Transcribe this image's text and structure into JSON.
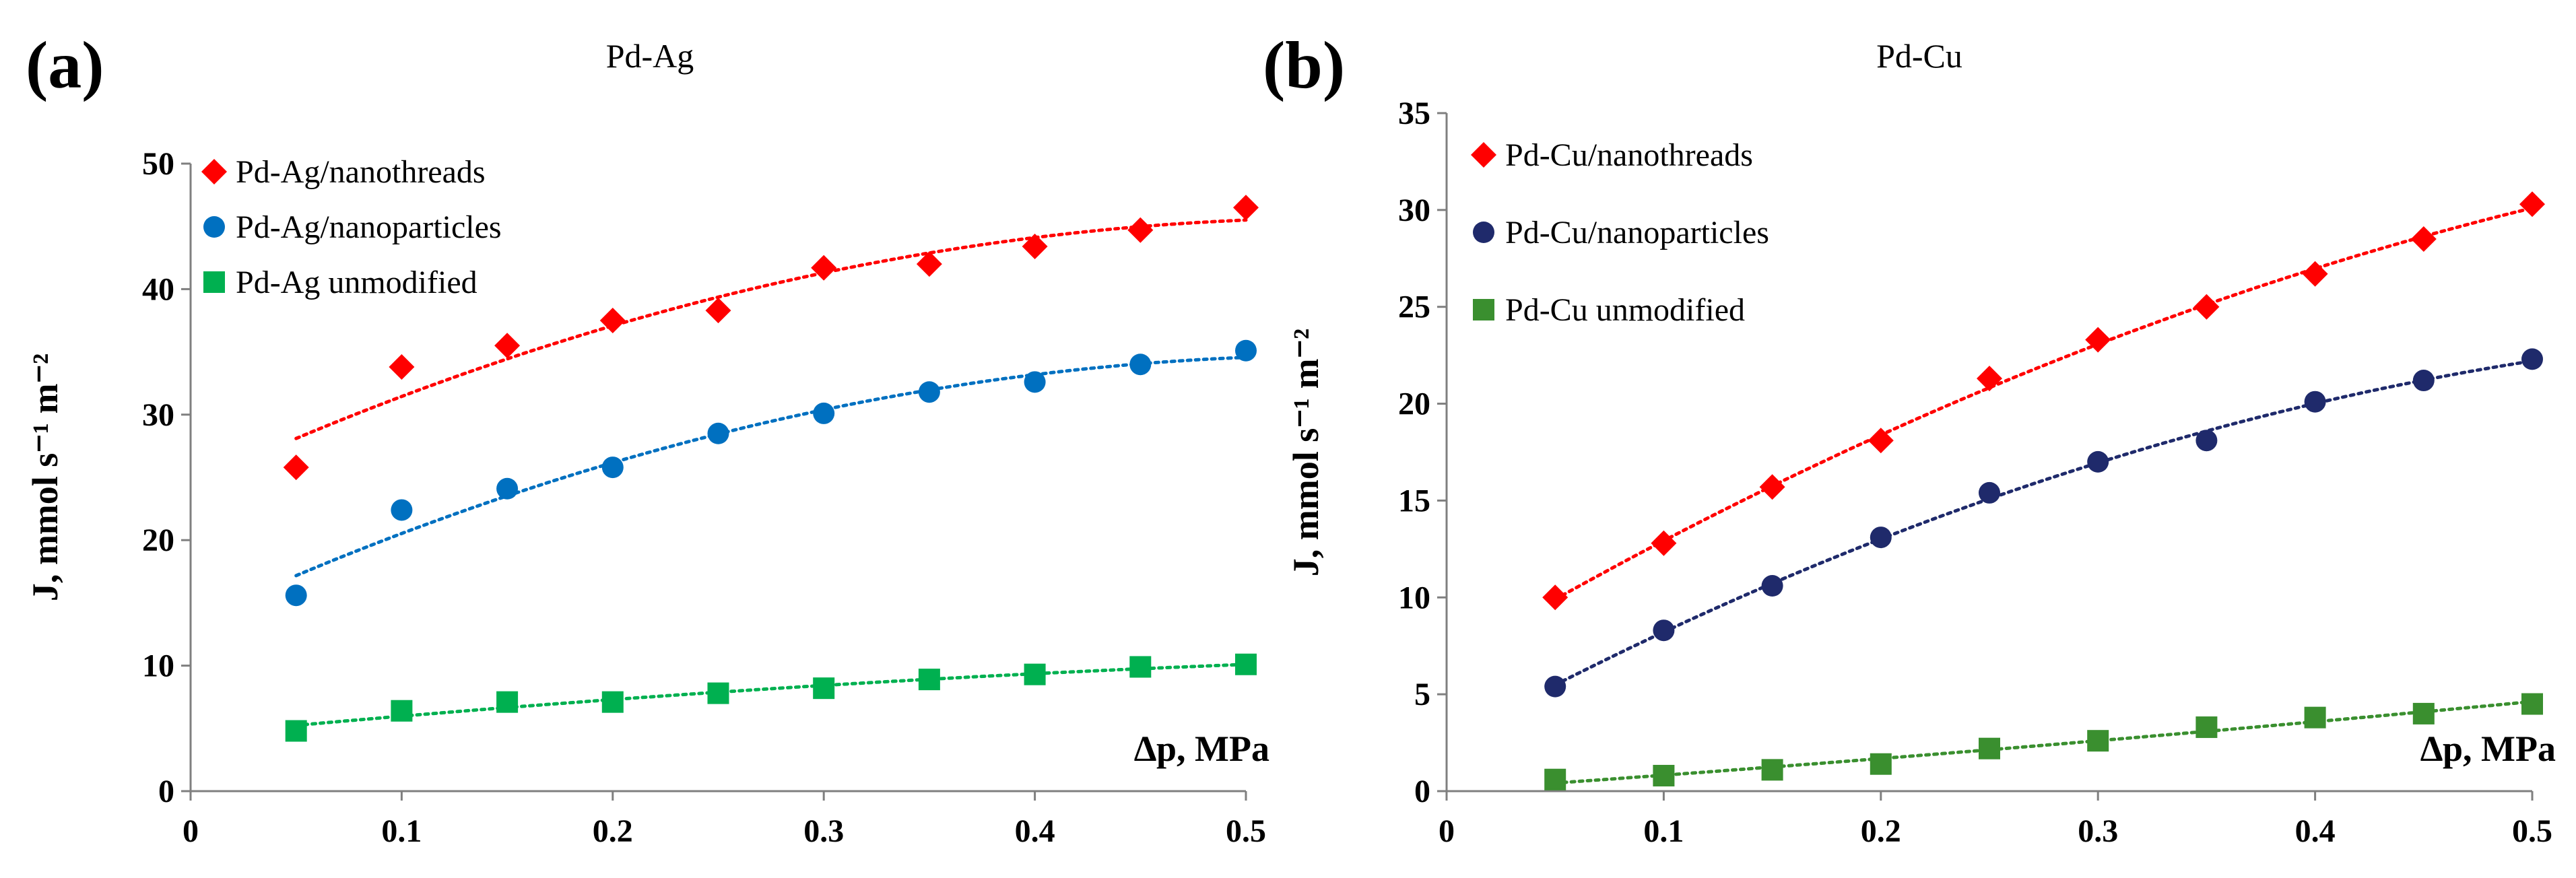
{
  "chart_data": [
    {
      "type": "scatter",
      "panel_label": "(a)",
      "title": "Pd-Ag",
      "xlabel": "∆p, MPa",
      "ylabel": "J, mmol s⁻¹ m⁻²",
      "xlim": [
        0,
        0.5
      ],
      "ylim": [
        0,
        50
      ],
      "xticks": [
        "0",
        "0.1",
        "0.2",
        "0.3",
        "0.4",
        "0.5"
      ],
      "yticks": [
        "0",
        "10",
        "20",
        "30",
        "40",
        "50"
      ],
      "grid": false,
      "legend_position": "top-left",
      "x": [
        0.05,
        0.1,
        0.15,
        0.2,
        0.25,
        0.3,
        0.35,
        0.4,
        0.45,
        0.5
      ],
      "series": [
        {
          "name": "Pd-Ag/nanothreads",
          "marker": "diamond",
          "color": "#ff0000",
          "values": [
            25.8,
            33.8,
            35.5,
            37.5,
            38.3,
            41.7,
            42.0,
            43.4,
            44.7,
            46.5
          ]
        },
        {
          "name": "Pd-Ag/nanoparticles",
          "marker": "circle",
          "color": "#0070c0",
          "values": [
            15.6,
            22.4,
            24.1,
            25.8,
            28.5,
            30.1,
            31.8,
            32.6,
            34.0,
            35.1
          ]
        },
        {
          "name": "Pd-Ag unmodified",
          "marker": "square",
          "color": "#00b050",
          "values": [
            4.8,
            6.4,
            7.1,
            7.1,
            7.8,
            8.2,
            8.9,
            9.3,
            9.9,
            10.1
          ]
        }
      ]
    },
    {
      "type": "scatter",
      "panel_label": "(b)",
      "title": "Pd-Cu",
      "xlabel": "∆p, MPa",
      "ylabel": "J, mmol s⁻¹ m⁻²",
      "xlim": [
        0,
        0.5
      ],
      "ylim": [
        0,
        35
      ],
      "xticks": [
        "0",
        "0.1",
        "0.2",
        "0.3",
        "0.4",
        "0.5"
      ],
      "yticks": [
        "0",
        "5",
        "10",
        "15",
        "20",
        "25",
        "30",
        "35"
      ],
      "grid": false,
      "legend_position": "top-left",
      "x": [
        0.05,
        0.1,
        0.15,
        0.2,
        0.25,
        0.3,
        0.35,
        0.4,
        0.45,
        0.5
      ],
      "series": [
        {
          "name": "Pd-Cu/nanothreads",
          "marker": "diamond",
          "color": "#ff0000",
          "values": [
            10.0,
            12.8,
            15.7,
            18.1,
            21.3,
            23.3,
            25.0,
            26.7,
            28.5,
            30.3
          ]
        },
        {
          "name": "Pd-Cu/nanoparticles",
          "marker": "circle",
          "color": "#1f2a6b",
          "values": [
            5.4,
            8.3,
            10.6,
            13.1,
            15.4,
            17.0,
            18.1,
            20.1,
            21.2,
            22.3
          ]
        },
        {
          "name": "Pd-Cu unmodified",
          "marker": "square",
          "color": "#3a8f2f",
          "values": [
            0.6,
            0.8,
            1.1,
            1.4,
            2.2,
            2.6,
            3.3,
            3.8,
            4.0,
            4.5
          ]
        }
      ]
    }
  ]
}
